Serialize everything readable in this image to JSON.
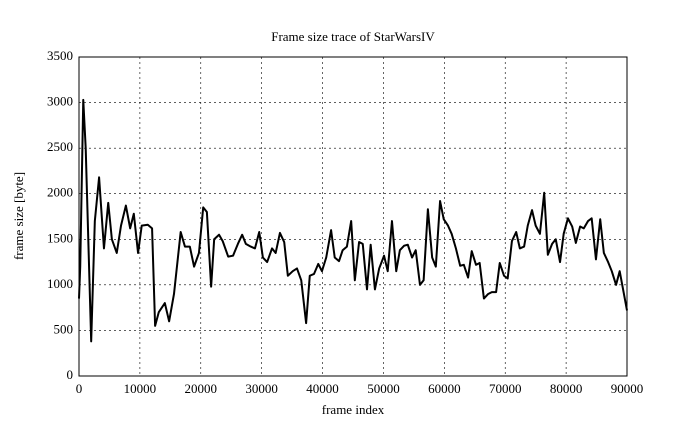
{
  "chart_data": {
    "type": "line",
    "title": "Frame size trace of StarWarsIV",
    "x_label": "frame index",
    "y_label": "frame size [byte]",
    "x": [
      0,
      200,
      700,
      1100,
      2000,
      2600,
      3300,
      4100,
      4800,
      5400,
      6200,
      6900,
      7700,
      8400,
      9000,
      9700,
      10300,
      11300,
      12000,
      12500,
      13100,
      14100,
      14800,
      15600,
      16700,
      17400,
      18200,
      18900,
      19700,
      20400,
      21000,
      21700,
      22200,
      23000,
      23600,
      24500,
      25300,
      26100,
      26800,
      27400,
      28200,
      28900,
      29600,
      30200,
      30900,
      31700,
      32300,
      33000,
      33700,
      34300,
      35100,
      35800,
      36500,
      37300,
      37900,
      38600,
      39300,
      39900,
      40600,
      41400,
      42000,
      42700,
      43300,
      44000,
      44700,
      45300,
      46000,
      46600,
      47300,
      47900,
      48600,
      49300,
      50100,
      50700,
      51400,
      52100,
      52700,
      53400,
      54000,
      54700,
      55300,
      56000,
      56600,
      57300,
      58000,
      58600,
      59300,
      59900,
      60600,
      61200,
      61900,
      62600,
      63200,
      63900,
      64500,
      65200,
      65800,
      66500,
      67200,
      67800,
      68500,
      69100,
      69800,
      70400,
      71100,
      71800,
      72400,
      73100,
      73700,
      74400,
      75000,
      75700,
      76400,
      77000,
      77700,
      78300,
      79000,
      79600,
      80300,
      81000,
      81600,
      82300,
      82900,
      83600,
      84200,
      84900,
      85600,
      86200,
      86900,
      87500,
      88200,
      88800,
      90000
    ],
    "series": [
      {
        "name": "frame size",
        "color": "#000000",
        "values": [
          850,
          1200,
          3030,
          2500,
          380,
          1700,
          2180,
          1400,
          1900,
          1500,
          1350,
          1650,
          1870,
          1620,
          1780,
          1350,
          1650,
          1660,
          1620,
          550,
          700,
          800,
          600,
          900,
          1580,
          1420,
          1420,
          1200,
          1350,
          1850,
          1800,
          980,
          1500,
          1550,
          1480,
          1310,
          1320,
          1450,
          1550,
          1450,
          1420,
          1400,
          1580,
          1300,
          1250,
          1400,
          1350,
          1570,
          1470,
          1100,
          1150,
          1180,
          1050,
          580,
          1100,
          1120,
          1230,
          1150,
          1300,
          1600,
          1300,
          1260,
          1380,
          1420,
          1700,
          1050,
          1470,
          1450,
          950,
          1440,
          950,
          1180,
          1320,
          1150,
          1700,
          1150,
          1380,
          1430,
          1440,
          1300,
          1380,
          1000,
          1050,
          1830,
          1300,
          1200,
          1920,
          1720,
          1650,
          1560,
          1400,
          1210,
          1220,
          1080,
          1370,
          1220,
          1240,
          850,
          900,
          920,
          920,
          1240,
          1100,
          1070,
          1480,
          1580,
          1400,
          1420,
          1650,
          1820,
          1650,
          1560,
          2010,
          1330,
          1450,
          1500,
          1250,
          1560,
          1730,
          1640,
          1460,
          1640,
          1620,
          1700,
          1730,
          1280,
          1720,
          1350,
          1250,
          1150,
          1000,
          1150,
          720
        ]
      }
    ],
    "xlim": [
      0,
      90000
    ],
    "ylim": [
      0,
      3500
    ],
    "xticks": [
      0,
      10000,
      20000,
      30000,
      40000,
      50000,
      60000,
      70000,
      80000,
      90000
    ],
    "yticks": [
      0,
      500,
      1000,
      1500,
      2000,
      2500,
      3000,
      3500
    ],
    "grid": true
  }
}
